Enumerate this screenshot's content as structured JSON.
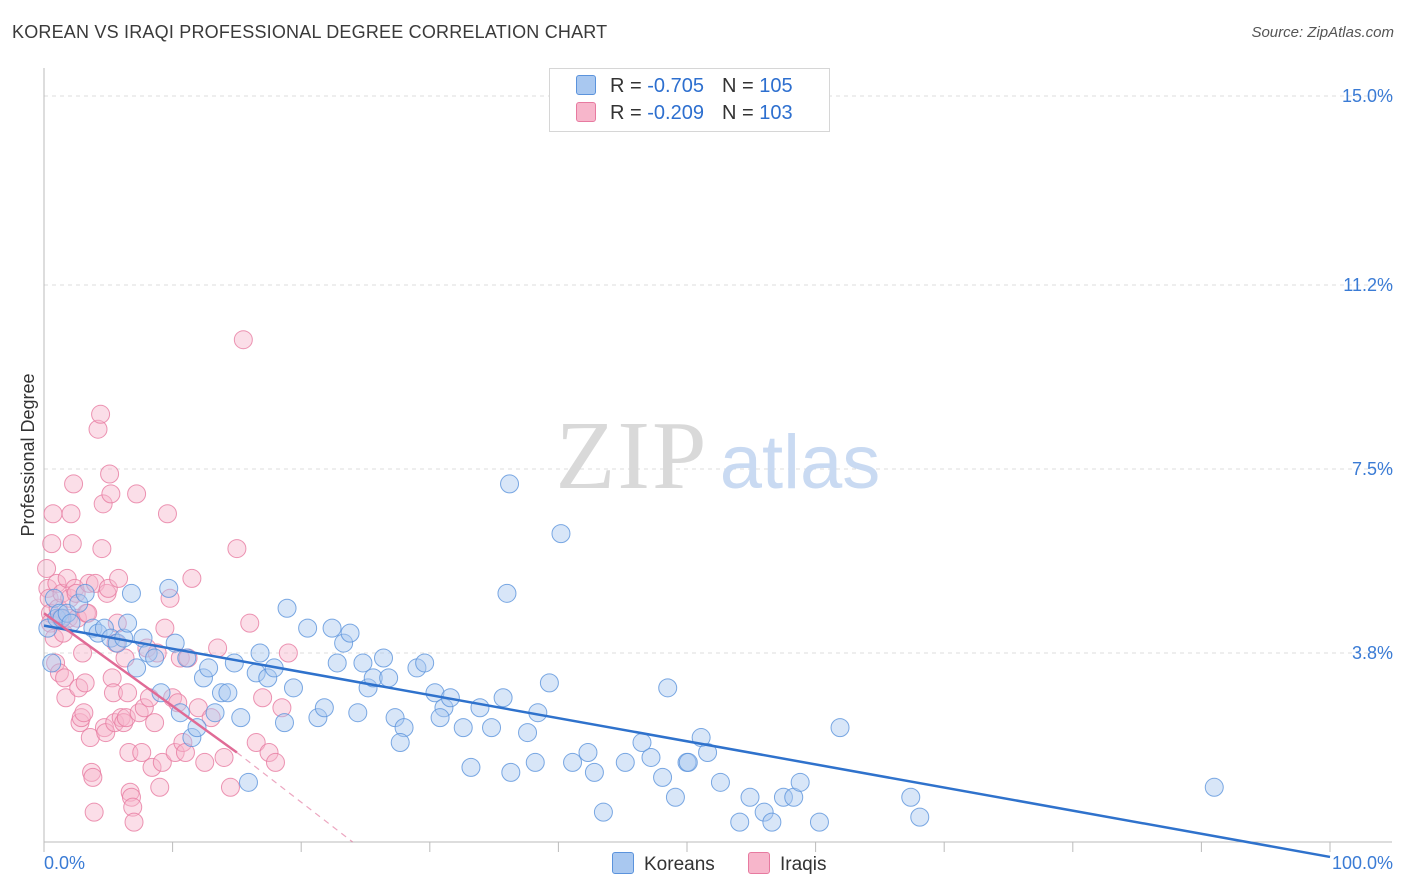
{
  "title": "KOREAN VS IRAQI PROFESSIONAL DEGREE CORRELATION CHART",
  "source": "Source: ZipAtlas.com",
  "watermark": {
    "zip": "ZIP",
    "atlas": "atlas"
  },
  "colors": {
    "korean_fill": "#a9c8f0",
    "korean_stroke": "#5b93dc",
    "korean_line": "#2f72cc",
    "iraqi_fill": "#f7b6cb",
    "iraqi_stroke": "#e77aa0",
    "iraqi_line": "#e06b96",
    "tick_label": "#3a7bd5",
    "grid": "#dcdcdc"
  },
  "legend": {
    "korean": {
      "r_label": "R =",
      "r_value": "-0.705",
      "n_label": "N =",
      "n_value": "105"
    },
    "iraqi": {
      "r_label": "R =",
      "r_value": "-0.209",
      "n_label": "N =",
      "n_value": "103"
    }
  },
  "bottom_legend": {
    "korean": "Koreans",
    "iraqi": "Iraqis"
  },
  "chart_data": {
    "type": "scatter",
    "title": "KOREAN VS IRAQI PROFESSIONAL DEGREE CORRELATION CHART",
    "xlabel": "",
    "ylabel": "Professional Degree",
    "xlim": [
      0,
      100
    ],
    "ylim": [
      0,
      15
    ],
    "x_tick_labels": [
      "0.0%",
      "100.0%"
    ],
    "y_ticks": [
      3.8,
      7.5,
      11.2,
      15.0
    ],
    "y_tick_labels": [
      "3.8%",
      "7.5%",
      "11.2%",
      "15.0%"
    ],
    "grid": true,
    "legend_position": "top-center",
    "series": [
      {
        "name": "Koreans",
        "r": -0.705,
        "n": 105,
        "trend": {
          "x": [
            0,
            100
          ],
          "y": [
            4.35,
            -0.3
          ]
        },
        "points": [
          [
            0.3,
            4.3
          ],
          [
            0.6,
            3.6
          ],
          [
            0.8,
            4.9
          ],
          [
            1.0,
            4.5
          ],
          [
            1.2,
            4.6
          ],
          [
            1.4,
            4.5
          ],
          [
            1.8,
            4.6
          ],
          [
            2.1,
            4.4
          ],
          [
            2.7,
            4.8
          ],
          [
            3.2,
            5.0
          ],
          [
            3.8,
            4.3
          ],
          [
            4.2,
            4.2
          ],
          [
            4.7,
            4.3
          ],
          [
            5.2,
            4.1
          ],
          [
            5.7,
            4.0
          ],
          [
            6.2,
            4.1
          ],
          [
            6.5,
            4.4
          ],
          [
            6.8,
            5.0
          ],
          [
            7.2,
            3.5
          ],
          [
            7.7,
            4.1
          ],
          [
            8.1,
            3.8
          ],
          [
            8.6,
            3.7
          ],
          [
            9.1,
            3.0
          ],
          [
            9.7,
            5.1
          ],
          [
            10.2,
            4.0
          ],
          [
            10.6,
            2.6
          ],
          [
            11.1,
            3.7
          ],
          [
            11.5,
            2.1
          ],
          [
            11.9,
            2.3
          ],
          [
            12.4,
            3.3
          ],
          [
            12.8,
            3.5
          ],
          [
            13.3,
            2.6
          ],
          [
            13.8,
            3.0
          ],
          [
            14.3,
            3.0
          ],
          [
            14.8,
            3.6
          ],
          [
            15.3,
            2.5
          ],
          [
            15.9,
            1.2
          ],
          [
            16.5,
            3.4
          ],
          [
            16.8,
            3.8
          ],
          [
            17.4,
            3.3
          ],
          [
            17.9,
            3.5
          ],
          [
            18.7,
            2.4
          ],
          [
            18.9,
            4.7
          ],
          [
            19.4,
            3.1
          ],
          [
            20.5,
            4.3
          ],
          [
            21.3,
            2.5
          ],
          [
            21.8,
            2.7
          ],
          [
            22.4,
            4.3
          ],
          [
            22.8,
            3.6
          ],
          [
            23.3,
            4.0
          ],
          [
            23.8,
            4.2
          ],
          [
            24.4,
            2.6
          ],
          [
            24.8,
            3.6
          ],
          [
            25.2,
            3.1
          ],
          [
            25.6,
            3.3
          ],
          [
            26.4,
            3.7
          ],
          [
            26.8,
            3.3
          ],
          [
            27.3,
            2.5
          ],
          [
            28.0,
            2.3
          ],
          [
            27.7,
            2.0
          ],
          [
            29.0,
            3.5
          ],
          [
            29.6,
            3.6
          ],
          [
            30.4,
            3.0
          ],
          [
            31.1,
            2.7
          ],
          [
            30.8,
            2.5
          ],
          [
            31.6,
            2.9
          ],
          [
            32.6,
            2.3
          ],
          [
            33.2,
            1.5
          ],
          [
            33.9,
            2.7
          ],
          [
            34.8,
            2.3
          ],
          [
            35.7,
            2.9
          ],
          [
            36.2,
            7.2
          ],
          [
            36.0,
            5.0
          ],
          [
            36.3,
            1.4
          ],
          [
            37.6,
            2.2
          ],
          [
            38.2,
            1.6
          ],
          [
            38.4,
            2.6
          ],
          [
            39.3,
            3.2
          ],
          [
            40.2,
            6.2
          ],
          [
            41.1,
            1.6
          ],
          [
            42.3,
            1.8
          ],
          [
            42.8,
            1.4
          ],
          [
            43.5,
            0.6
          ],
          [
            45.2,
            1.6
          ],
          [
            46.5,
            2.0
          ],
          [
            47.2,
            1.7
          ],
          [
            48.1,
            1.3
          ],
          [
            48.5,
            3.1
          ],
          [
            49.1,
            0.9
          ],
          [
            50.0,
            1.6
          ],
          [
            50.1,
            1.6
          ],
          [
            51.1,
            2.1
          ],
          [
            51.6,
            1.8
          ],
          [
            52.6,
            1.2
          ],
          [
            54.1,
            0.4
          ],
          [
            54.9,
            0.9
          ],
          [
            56.0,
            0.6
          ],
          [
            56.6,
            0.4
          ],
          [
            57.5,
            0.9
          ],
          [
            58.3,
            0.9
          ],
          [
            58.8,
            1.2
          ],
          [
            60.3,
            0.4
          ],
          [
            61.9,
            2.3
          ],
          [
            67.4,
            0.9
          ],
          [
            68.1,
            0.5
          ],
          [
            91.0,
            1.1
          ]
        ]
      },
      {
        "name": "Iraqis",
        "r": -0.209,
        "n": 103,
        "trend": {
          "x": [
            0,
            15
          ],
          "y": [
            4.6,
            1.8
          ]
        },
        "trend_dashed": {
          "x": [
            15,
            24
          ],
          "y": [
            1.8,
            0.0
          ]
        },
        "points": [
          [
            0.2,
            5.5
          ],
          [
            0.3,
            5.1
          ],
          [
            0.4,
            4.9
          ],
          [
            0.5,
            4.6
          ],
          [
            0.5,
            4.4
          ],
          [
            0.6,
            6.0
          ],
          [
            0.7,
            6.6
          ],
          [
            0.8,
            4.1
          ],
          [
            0.9,
            3.6
          ],
          [
            1.0,
            5.2
          ],
          [
            1.1,
            4.7
          ],
          [
            1.2,
            3.4
          ],
          [
            1.3,
            4.5
          ],
          [
            1.4,
            5.0
          ],
          [
            1.5,
            4.2
          ],
          [
            1.6,
            3.3
          ],
          [
            1.7,
            2.9
          ],
          [
            1.8,
            5.3
          ],
          [
            1.9,
            4.5
          ],
          [
            2.0,
            4.9
          ],
          [
            2.1,
            6.6
          ],
          [
            2.2,
            6.0
          ],
          [
            2.3,
            7.2
          ],
          [
            2.4,
            5.1
          ],
          [
            2.5,
            5.0
          ],
          [
            2.6,
            4.5
          ],
          [
            2.7,
            3.1
          ],
          [
            2.8,
            2.4
          ],
          [
            2.9,
            2.5
          ],
          [
            3.0,
            3.8
          ],
          [
            3.1,
            2.6
          ],
          [
            3.2,
            3.2
          ],
          [
            3.3,
            4.6
          ],
          [
            3.4,
            4.6
          ],
          [
            3.5,
            5.2
          ],
          [
            3.6,
            2.1
          ],
          [
            3.7,
            1.4
          ],
          [
            3.8,
            1.3
          ],
          [
            3.9,
            0.6
          ],
          [
            4.0,
            5.2
          ],
          [
            4.2,
            8.3
          ],
          [
            4.4,
            8.6
          ],
          [
            4.5,
            5.9
          ],
          [
            4.6,
            6.8
          ],
          [
            4.7,
            2.3
          ],
          [
            4.8,
            2.2
          ],
          [
            4.9,
            5.0
          ],
          [
            5.0,
            5.1
          ],
          [
            5.1,
            7.4
          ],
          [
            5.2,
            7.0
          ],
          [
            5.3,
            3.3
          ],
          [
            5.4,
            3.0
          ],
          [
            5.5,
            2.4
          ],
          [
            5.6,
            4.0
          ],
          [
            5.7,
            4.4
          ],
          [
            5.8,
            5.3
          ],
          [
            6.0,
            2.5
          ],
          [
            6.2,
            2.4
          ],
          [
            6.3,
            3.7
          ],
          [
            6.4,
            2.5
          ],
          [
            6.5,
            3.0
          ],
          [
            6.6,
            1.8
          ],
          [
            6.7,
            1.0
          ],
          [
            6.8,
            0.9
          ],
          [
            6.9,
            0.7
          ],
          [
            7.0,
            0.4
          ],
          [
            7.2,
            7.0
          ],
          [
            7.4,
            2.6
          ],
          [
            7.6,
            1.8
          ],
          [
            7.8,
            2.7
          ],
          [
            8.0,
            3.9
          ],
          [
            8.2,
            2.9
          ],
          [
            8.4,
            1.5
          ],
          [
            8.6,
            2.4
          ],
          [
            8.8,
            3.8
          ],
          [
            9.0,
            1.1
          ],
          [
            9.2,
            1.6
          ],
          [
            9.4,
            4.3
          ],
          [
            9.6,
            6.6
          ],
          [
            9.8,
            4.9
          ],
          [
            10.0,
            2.9
          ],
          [
            10.2,
            1.8
          ],
          [
            10.4,
            2.8
          ],
          [
            10.6,
            3.7
          ],
          [
            10.8,
            2.0
          ],
          [
            11.0,
            1.8
          ],
          [
            11.2,
            3.7
          ],
          [
            11.5,
            5.3
          ],
          [
            12.0,
            2.7
          ],
          [
            12.5,
            1.6
          ],
          [
            13.0,
            2.5
          ],
          [
            13.5,
            3.9
          ],
          [
            14.0,
            1.7
          ],
          [
            14.5,
            1.1
          ],
          [
            15.0,
            5.9
          ],
          [
            15.5,
            10.1
          ],
          [
            16.0,
            4.4
          ],
          [
            16.5,
            2.0
          ],
          [
            17.0,
            2.9
          ],
          [
            17.5,
            1.8
          ],
          [
            18.0,
            1.6
          ],
          [
            18.5,
            2.7
          ],
          [
            19.0,
            3.8
          ]
        ]
      }
    ]
  }
}
